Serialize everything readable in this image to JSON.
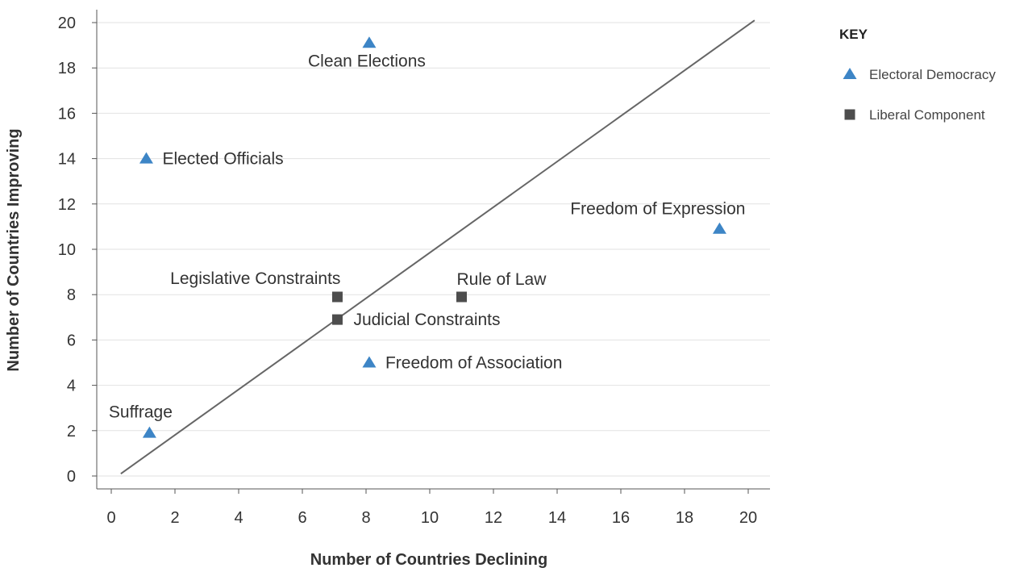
{
  "chart_data": {
    "type": "scatter",
    "xlabel": "Number of Countries Declining",
    "ylabel": "Number of Countries Improving",
    "xlim": [
      0,
      20
    ],
    "ylim": [
      0,
      20
    ],
    "x_ticks": [
      0,
      2,
      4,
      6,
      8,
      10,
      12,
      14,
      16,
      18,
      20
    ],
    "y_ticks": [
      0,
      2,
      4,
      6,
      8,
      10,
      12,
      14,
      16,
      18,
      20
    ],
    "grid": "horizontal",
    "legend": {
      "title": "KEY",
      "placement": "top-right",
      "entries": [
        {
          "name": "Electoral Democracy",
          "marker": "triangle",
          "color": "#3d85c6"
        },
        {
          "name": "Liberal Component",
          "marker": "square",
          "color": "#4d4d4d"
        }
      ]
    },
    "reference_line": {
      "from": [
        0.3,
        0.1
      ],
      "to": [
        20.2,
        20.1
      ],
      "color": "#666666"
    },
    "series": [
      {
        "name": "Electoral Democracy",
        "marker": "triangle",
        "color": "#3d85c6",
        "points": [
          {
            "label": "Clean Elections",
            "x": 8.1,
            "y": 19.1,
            "label_pos": "below"
          },
          {
            "label": "Elected Officials",
            "x": 1.1,
            "y": 14.0,
            "label_pos": "right"
          },
          {
            "label": "Freedom of Expression",
            "x": 19.1,
            "y": 10.9,
            "label_pos": "above-left"
          },
          {
            "label": "Freedom of Association",
            "x": 8.1,
            "y": 5.0,
            "label_pos": "right"
          },
          {
            "label": "Suffrage",
            "x": 1.2,
            "y": 1.9,
            "label_pos": "above"
          }
        ]
      },
      {
        "name": "Liberal Component",
        "marker": "square",
        "color": "#4d4d4d",
        "points": [
          {
            "label": "Legislative Constraints",
            "x": 7.1,
            "y": 7.9,
            "label_pos": "above-left"
          },
          {
            "label": "Judicial Constraints",
            "x": 7.1,
            "y": 6.9,
            "label_pos": "right"
          },
          {
            "label": "Rule of Law",
            "x": 11.0,
            "y": 7.9,
            "label_pos": "above"
          }
        ]
      }
    ]
  }
}
